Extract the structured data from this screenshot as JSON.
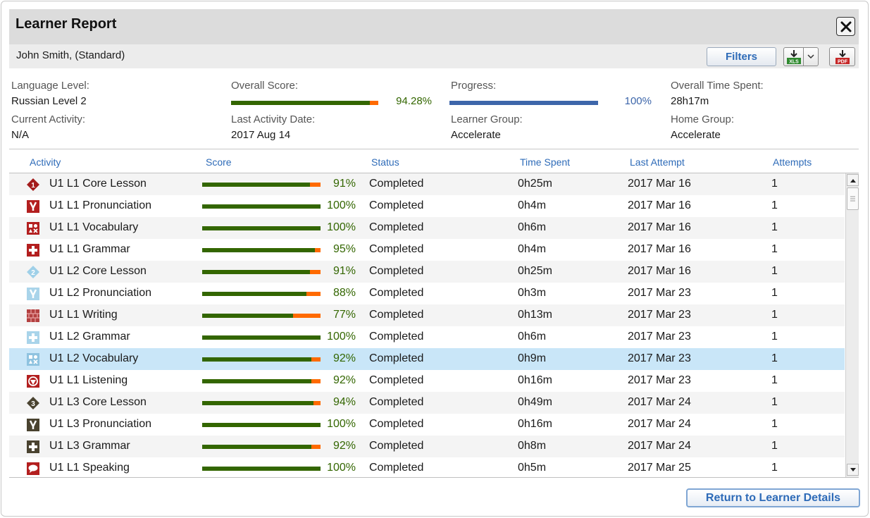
{
  "title": "Learner Report",
  "learner": "John Smith, (Standard)",
  "toolbar": {
    "filters_label": "Filters",
    "xls_label": "XLS",
    "pdf_label": "PDF"
  },
  "summary": {
    "language_level_label": "Language Level:",
    "language_level": "Russian Level 2",
    "overall_score_label": "Overall Score:",
    "overall_score": "94.28%",
    "overall_score_value": 94.28,
    "progress_label": "Progress:",
    "progress": "100%",
    "progress_value": 100,
    "time_spent_label": "Overall Time Spent:",
    "time_spent": "28h17m",
    "current_activity_label": "Current Activity:",
    "current_activity": "N/A",
    "last_activity_label": "Last Activity Date:",
    "last_activity": "2017 Aug 14",
    "learner_group_label": "Learner Group:",
    "learner_group": "Accelerate",
    "home_group_label": "Home Group:",
    "home_group": "Accelerate"
  },
  "table": {
    "headers": {
      "activity": "Activity",
      "score": "Score",
      "status": "Status",
      "time": "Time Spent",
      "last": "Last Attempt",
      "attempts": "Attempts"
    },
    "rows": [
      {
        "icon": "core-lesson-1",
        "activity": "U1 L1 Core Lesson",
        "score": 91,
        "score_text": "91%",
        "status": "Completed",
        "time": "0h25m",
        "last": "2017 Mar 16",
        "attempts": "1"
      },
      {
        "icon": "pronunciation",
        "activity": "U1 L1 Pronunciation",
        "score": 100,
        "score_text": "100%",
        "status": "Completed",
        "time": "0h4m",
        "last": "2017 Mar 16",
        "attempts": "1"
      },
      {
        "icon": "vocabulary",
        "activity": "U1 L1 Vocabulary",
        "score": 100,
        "score_text": "100%",
        "status": "Completed",
        "time": "0h6m",
        "last": "2017 Mar 16",
        "attempts": "1"
      },
      {
        "icon": "grammar",
        "activity": "U1 L1 Grammar",
        "score": 95,
        "score_text": "95%",
        "status": "Completed",
        "time": "0h4m",
        "last": "2017 Mar 16",
        "attempts": "1"
      },
      {
        "icon": "core-lesson-2",
        "activity": "U1 L2 Core Lesson",
        "score": 91,
        "score_text": "91%",
        "status": "Completed",
        "time": "0h25m",
        "last": "2017 Mar 16",
        "attempts": "1"
      },
      {
        "icon": "pronunciation-light",
        "activity": "U1 L2 Pronunciation",
        "score": 88,
        "score_text": "88%",
        "status": "Completed",
        "time": "0h3m",
        "last": "2017 Mar 23",
        "attempts": "1"
      },
      {
        "icon": "writing",
        "activity": "U1 L1 Writing",
        "score": 77,
        "score_text": "77%",
        "status": "Completed",
        "time": "0h13m",
        "last": "2017 Mar 23",
        "attempts": "1"
      },
      {
        "icon": "grammar-light",
        "activity": "U1 L2 Grammar",
        "score": 100,
        "score_text": "100%",
        "status": "Completed",
        "time": "0h6m",
        "last": "2017 Mar 23",
        "attempts": "1"
      },
      {
        "icon": "vocabulary-light",
        "activity": "U1 L2 Vocabulary",
        "score": 92,
        "score_text": "92%",
        "status": "Completed",
        "time": "0h9m",
        "last": "2017 Mar 23",
        "attempts": "1",
        "selected": true
      },
      {
        "icon": "listening",
        "activity": "U1 L1 Listening",
        "score": 92,
        "score_text": "92%",
        "status": "Completed",
        "time": "0h16m",
        "last": "2017 Mar 23",
        "attempts": "1"
      },
      {
        "icon": "core-lesson-3",
        "activity": "U1 L3 Core Lesson",
        "score": 94,
        "score_text": "94%",
        "status": "Completed",
        "time": "0h49m",
        "last": "2017 Mar 24",
        "attempts": "1"
      },
      {
        "icon": "pronunciation-dark",
        "activity": "U1 L3 Pronunciation",
        "score": 100,
        "score_text": "100%",
        "status": "Completed",
        "time": "0h16m",
        "last": "2017 Mar 24",
        "attempts": "1"
      },
      {
        "icon": "grammar-dark",
        "activity": "U1 L3 Grammar",
        "score": 92,
        "score_text": "92%",
        "status": "Completed",
        "time": "0h8m",
        "last": "2017 Mar 24",
        "attempts": "1"
      },
      {
        "icon": "speaking",
        "activity": "U1 L1 Speaking",
        "score": 100,
        "score_text": "100%",
        "status": "Completed",
        "time": "0h5m",
        "last": "2017 Mar 25",
        "attempts": "1"
      }
    ]
  },
  "footer": {
    "return_label": "Return to Learner Details"
  }
}
